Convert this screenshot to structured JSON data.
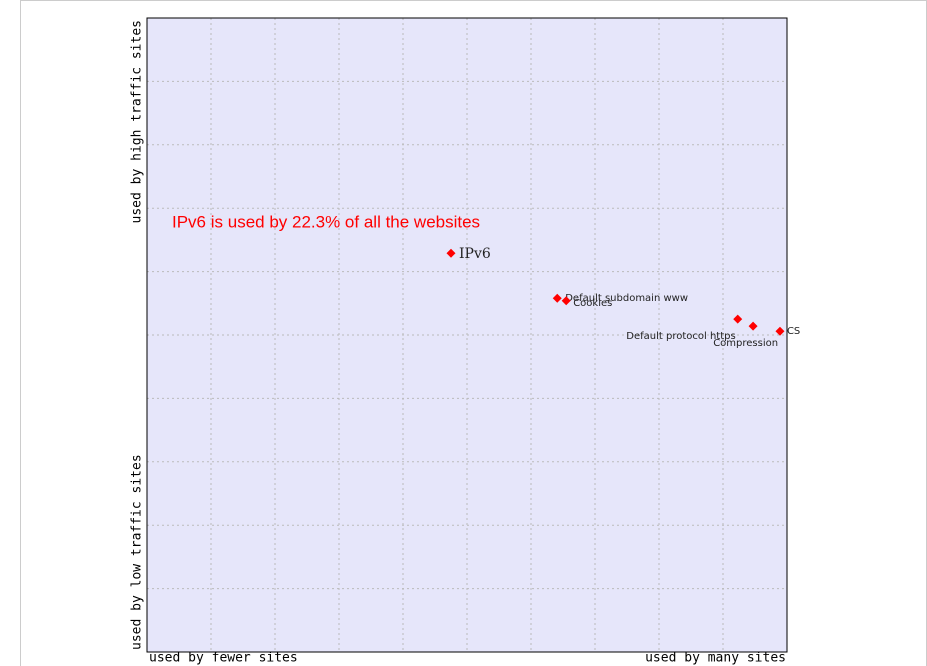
{
  "chart_data": {
    "type": "scatter",
    "annotation": "IPv6 is used by 22.3% of all the websites",
    "y_axis_labels": [
      "used by high traffic sites",
      "used by low traffic sites"
    ],
    "x_axis_labels": [
      "used by fewer sites",
      "used by many sites"
    ],
    "color": "#ff0000",
    "grid": true,
    "xlim": [
      0,
      10
    ],
    "ylim": [
      0,
      10
    ],
    "xticks": [
      1,
      2,
      3,
      4,
      5,
      6,
      7,
      8,
      9
    ],
    "yticks": [
      1,
      2,
      3,
      4,
      5,
      6,
      7,
      8,
      9
    ],
    "points": [
      {
        "label": "IPv6",
        "x": 4.75,
        "y": 6.29
      },
      {
        "label": "Default subdomain www",
        "x": 6.41,
        "y": 5.58
      },
      {
        "label": "Cookies",
        "x": 6.55,
        "y": 5.54
      },
      {
        "label": "Default protocol https",
        "x": 9.23,
        "y": 5.25
      },
      {
        "label": "Compression",
        "x": 9.47,
        "y": 5.14
      },
      {
        "label": "CS",
        "x": 9.89,
        "y": 5.06
      }
    ]
  }
}
